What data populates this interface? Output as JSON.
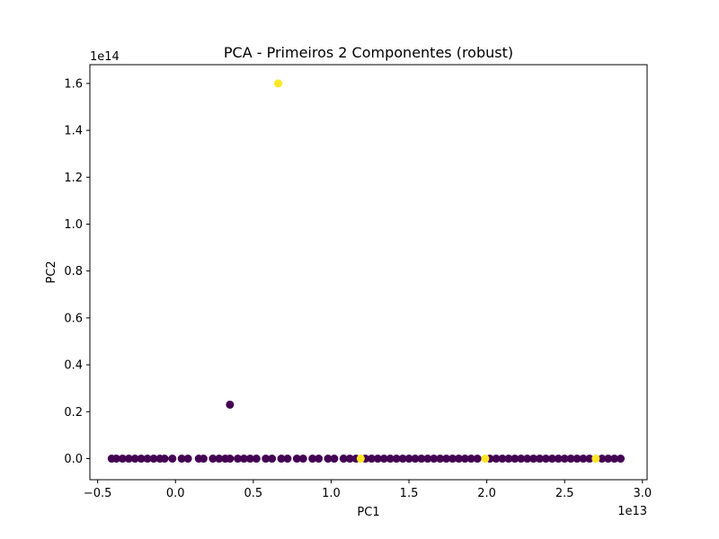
{
  "chart_data": {
    "type": "scatter",
    "title": "PCA - Primeiros 2 Componentes (robust)",
    "xlabel": "PC1",
    "ylabel": "PC2",
    "x_offset_label": "1e13",
    "y_offset_label": "1e14",
    "xlim": [
      -0.55,
      3.03
    ],
    "ylim": [
      -0.09,
      1.68
    ],
    "x_ticks": [
      -0.5,
      0.0,
      0.5,
      1.0,
      1.5,
      2.0,
      2.5,
      3.0
    ],
    "x_tick_labels": [
      "−0.5",
      "0.0",
      "0.5",
      "1.0",
      "1.5",
      "2.0",
      "2.5",
      "3.0"
    ],
    "y_ticks": [
      0.0,
      0.2,
      0.4,
      0.6,
      0.8,
      1.0,
      1.2,
      1.4,
      1.6
    ],
    "y_tick_labels": [
      "0.0",
      "0.2",
      "0.4",
      "0.6",
      "0.8",
      "1.0",
      "1.2",
      "1.4",
      "1.6"
    ],
    "grid": false,
    "colors": {
      "class_0": "#440154",
      "class_1": "#fde725"
    },
    "series": [
      {
        "color": "#440154",
        "points": [
          [
            -0.41,
            0.0
          ],
          [
            -0.38,
            0.0
          ],
          [
            -0.34,
            0.0
          ],
          [
            -0.3,
            0.0
          ],
          [
            -0.26,
            0.0
          ],
          [
            -0.22,
            0.0
          ],
          [
            -0.18,
            0.0
          ],
          [
            -0.14,
            0.0
          ],
          [
            -0.1,
            0.0
          ],
          [
            -0.07,
            0.0
          ],
          [
            -0.02,
            0.0
          ],
          [
            0.04,
            0.0
          ],
          [
            0.08,
            0.0
          ],
          [
            0.15,
            0.0
          ],
          [
            0.18,
            0.0
          ],
          [
            0.24,
            0.0
          ],
          [
            0.28,
            0.0
          ],
          [
            0.32,
            0.0
          ],
          [
            0.35,
            0.0
          ],
          [
            0.4,
            0.0
          ],
          [
            0.44,
            0.0
          ],
          [
            0.48,
            0.0
          ],
          [
            0.52,
            0.0
          ],
          [
            0.58,
            0.0
          ],
          [
            0.62,
            0.0
          ],
          [
            0.68,
            0.0
          ],
          [
            0.72,
            0.0
          ],
          [
            0.78,
            0.0
          ],
          [
            0.82,
            0.0
          ],
          [
            0.88,
            0.0
          ],
          [
            0.92,
            0.0
          ],
          [
            0.98,
            0.0
          ],
          [
            1.02,
            0.0
          ],
          [
            1.08,
            0.0
          ],
          [
            1.12,
            0.0
          ],
          [
            1.16,
            0.0
          ],
          [
            1.22,
            0.0
          ],
          [
            1.26,
            0.0
          ],
          [
            1.3,
            0.0
          ],
          [
            1.34,
            0.0
          ],
          [
            1.38,
            0.0
          ],
          [
            1.42,
            0.0
          ],
          [
            1.46,
            0.0
          ],
          [
            1.5,
            0.0
          ],
          [
            1.54,
            0.0
          ],
          [
            1.58,
            0.0
          ],
          [
            1.62,
            0.0
          ],
          [
            1.66,
            0.0
          ],
          [
            1.7,
            0.0
          ],
          [
            1.74,
            0.0
          ],
          [
            1.78,
            0.0
          ],
          [
            1.82,
            0.0
          ],
          [
            1.86,
            0.0
          ],
          [
            1.9,
            0.0
          ],
          [
            1.94,
            0.0
          ],
          [
            2.02,
            0.0
          ],
          [
            2.06,
            0.0
          ],
          [
            2.1,
            0.0
          ],
          [
            2.14,
            0.0
          ],
          [
            2.18,
            0.0
          ],
          [
            2.22,
            0.0
          ],
          [
            2.26,
            0.0
          ],
          [
            2.3,
            0.0
          ],
          [
            2.34,
            0.0
          ],
          [
            2.38,
            0.0
          ],
          [
            2.42,
            0.0
          ],
          [
            2.46,
            0.0
          ],
          [
            2.5,
            0.0
          ],
          [
            2.54,
            0.0
          ],
          [
            2.58,
            0.0
          ],
          [
            2.62,
            0.0
          ],
          [
            2.66,
            0.0
          ],
          [
            2.74,
            0.0
          ],
          [
            2.78,
            0.0
          ],
          [
            2.82,
            0.0
          ],
          [
            2.86,
            0.0
          ],
          [
            0.35,
            0.23
          ]
        ]
      },
      {
        "color": "#fde725",
        "points": [
          [
            0.66,
            1.6
          ],
          [
            1.19,
            0.0
          ],
          [
            1.99,
            0.0
          ],
          [
            2.7,
            0.0
          ]
        ]
      }
    ]
  }
}
